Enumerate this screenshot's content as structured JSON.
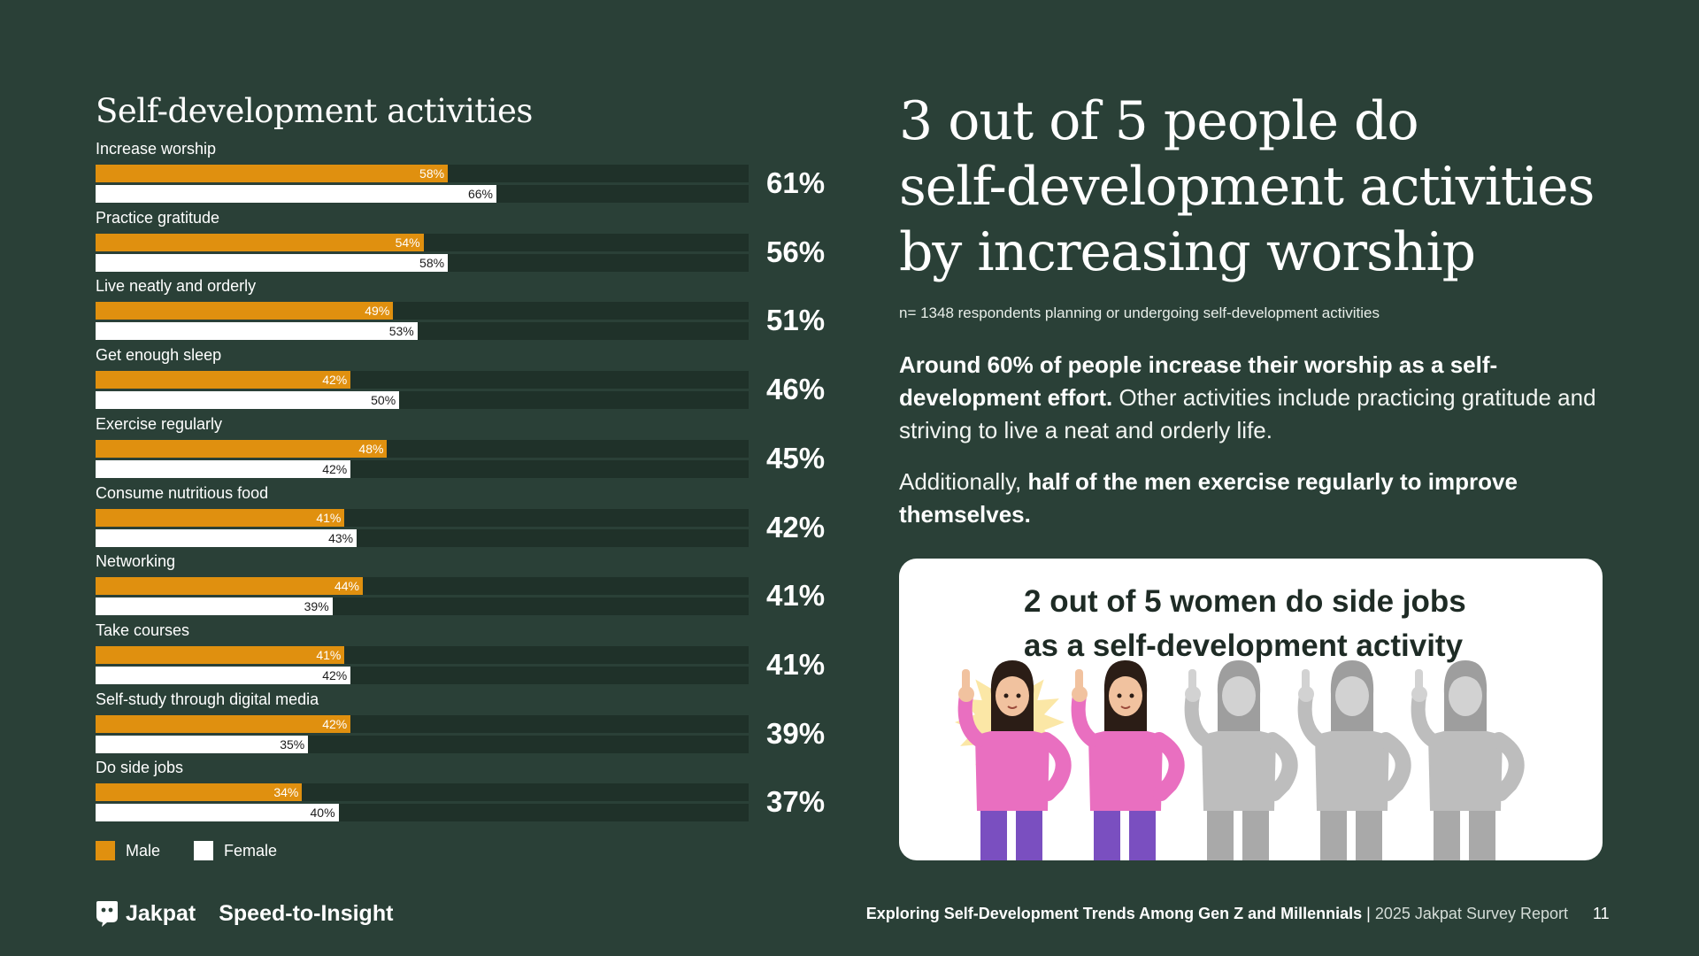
{
  "chart_data": {
    "type": "bar",
    "orientation": "horizontal",
    "title": "Self-development activities",
    "categories": [
      "Increase worship",
      "Practice gratitude",
      "Live neatly and orderly",
      "Get enough sleep",
      "Exercise regularly",
      "Consume nutritious food",
      "Networking",
      "Take courses",
      "Self-study through digital media",
      "Do side jobs"
    ],
    "series": [
      {
        "name": "Male",
        "color": "#e0900f",
        "values": [
          58,
          54,
          49,
          42,
          48,
          41,
          44,
          41,
          42,
          34
        ]
      },
      {
        "name": "Female",
        "color": "#ffffff",
        "values": [
          66,
          58,
          53,
          50,
          42,
          43,
          39,
          42,
          35,
          40
        ]
      }
    ],
    "totals": [
      61,
      56,
      51,
      46,
      45,
      42,
      41,
      41,
      39,
      37
    ],
    "xlim": [
      0,
      100
    ],
    "value_suffix": "%",
    "legend_position": "bottom-left"
  },
  "headline": {
    "line1": "3 out of 5 people do",
    "line2": "self-development activities",
    "line3": "by increasing worship"
  },
  "sample_note": "n= 1348 respondents planning or undergoing self-development activities",
  "paragraph1": {
    "bold": "Around 60% of people increase their worship as a self-development effort.",
    "rest": " Other activities include practicing gratitude and striving to live a neat and orderly life."
  },
  "paragraph2": {
    "lead": "Additionally, ",
    "bold": "half of the men exercise regularly to improve themselves."
  },
  "card": {
    "title_line1": "2 out of 5 women do side jobs",
    "title_line2": "as a self-development activity",
    "highlighted_count": 2,
    "total_count": 5,
    "highlight_color": "#e96fc0",
    "pants_color": "#7a4fc0",
    "inactive_color": "#bdbdbd"
  },
  "footer": {
    "brand": "Jakpat",
    "tagline": "Speed-to-Insight",
    "report_bold": "Exploring Self-Development Trends Among Gen Z and Millennials",
    "report_separator": " | ",
    "report_rest": "2025 Jakpat Survey Report",
    "page_number": "11"
  }
}
